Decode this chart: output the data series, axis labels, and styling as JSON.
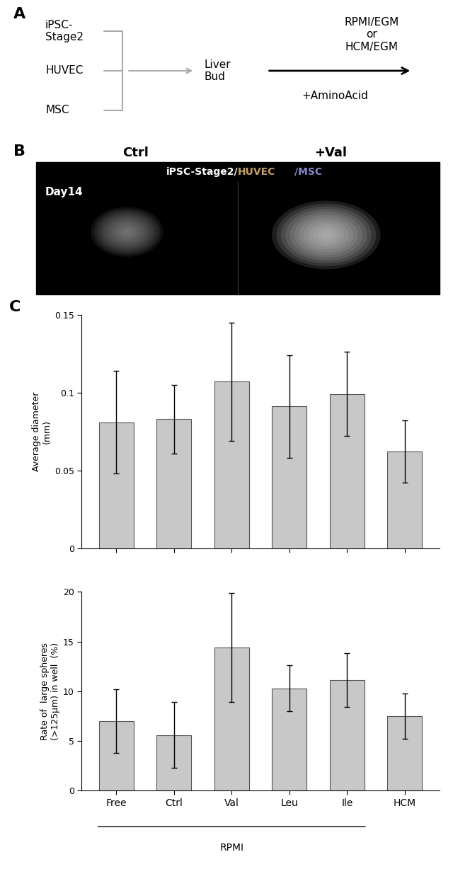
{
  "panel_A": {
    "label": "A",
    "cell_labels": [
      "iPSC-\nStage2",
      "HUVEC",
      "MSC"
    ],
    "arrow_label": "Liver\nBud",
    "right_text": "RPMI/EGM\nor\nHCM/EGM",
    "bottom_text": "+AminoAcid"
  },
  "panel_B": {
    "label": "B",
    "col_labels": [
      "Ctrl",
      "+Val"
    ],
    "day_label": "Day14"
  },
  "panel_C": {
    "label": "C",
    "categories": [
      "Free",
      "Ctrl",
      "Val",
      "Leu",
      "Ile",
      "HCM"
    ],
    "xlabel_group": "RPMI",
    "bar_color": "#c8c8c8",
    "bar_edgecolor": "#555555",
    "chart1": {
      "ylabel": "Average diameter\n(mm)",
      "ylim": [
        0,
        0.15
      ],
      "yticks": [
        0,
        0.05,
        0.1,
        0.15
      ],
      "ytick_labels": [
        "0",
        "0.05",
        "0.1",
        "0.15"
      ],
      "values": [
        0.081,
        0.083,
        0.107,
        0.091,
        0.099,
        0.062
      ],
      "errors": [
        0.033,
        0.022,
        0.038,
        0.033,
        0.027,
        0.02
      ]
    },
    "chart2": {
      "ylabel": "Rate of  large spheres\n(>125μm) in well  (%)",
      "ylim": [
        0,
        20
      ],
      "yticks": [
        0,
        5,
        10,
        15,
        20
      ],
      "ytick_labels": [
        "0",
        "5",
        "10",
        "15",
        "20"
      ],
      "values": [
        7.0,
        5.6,
        14.4,
        10.3,
        11.1,
        7.5
      ],
      "errors": [
        3.2,
        3.3,
        5.5,
        2.3,
        2.7,
        2.3
      ]
    }
  }
}
